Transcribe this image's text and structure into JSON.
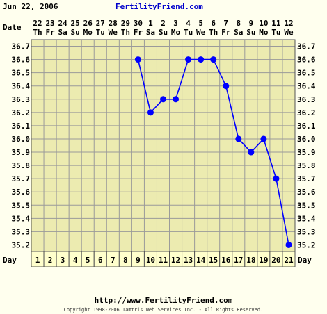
{
  "header": {
    "date": "Jun 22, 2006",
    "site_title": "FertilityFriend.com"
  },
  "footer": {
    "url": "http://www.FertilityFriend.com",
    "copyright": "Copyright 1998-2006 Tamtris Web Services Inc. - All Rights Reserved."
  },
  "colors": {
    "background": "#ffffee",
    "plot_area": "#ecebb0",
    "grid": "#9a9a9a",
    "series": "#0000ff",
    "day_cell": "#ffffcc",
    "site_title": "#0000cc"
  },
  "chart_data": {
    "type": "line",
    "row_labels": {
      "date": "Date",
      "day": "Day"
    },
    "dates": [
      "22",
      "23",
      "24",
      "25",
      "26",
      "27",
      "28",
      "29",
      "30",
      "1",
      "2",
      "3",
      "4",
      "5",
      "6",
      "7",
      "8",
      "9",
      "10",
      "11",
      "12"
    ],
    "weekdays": [
      "Th",
      "Fr",
      "Sa",
      "Su",
      "Mo",
      "Tu",
      "We",
      "Th",
      "Fr",
      "Sa",
      "Su",
      "Mo",
      "Tu",
      "We",
      "Th",
      "Fr",
      "Sa",
      "Su",
      "Mo",
      "Tu",
      "We"
    ],
    "days": [
      1,
      2,
      3,
      4,
      5,
      6,
      7,
      8,
      9,
      10,
      11,
      12,
      13,
      14,
      15,
      16,
      17,
      18,
      19,
      20,
      21
    ],
    "y_ticks": [
      "36.7",
      "36.6",
      "36.5",
      "36.4",
      "36.3",
      "36.2",
      "36.1",
      "36.0",
      "35.9",
      "35.8",
      "35.7",
      "35.6",
      "35.5",
      "35.4",
      "35.3",
      "35.2"
    ],
    "ylim": [
      35.15,
      36.75
    ],
    "grid": true,
    "series": [
      {
        "values": [
          null,
          null,
          null,
          null,
          null,
          null,
          null,
          null,
          36.6,
          36.2,
          36.3,
          36.3,
          36.6,
          36.6,
          36.6,
          36.4,
          36.0,
          35.9,
          36.0,
          35.7,
          35.2
        ]
      }
    ]
  }
}
